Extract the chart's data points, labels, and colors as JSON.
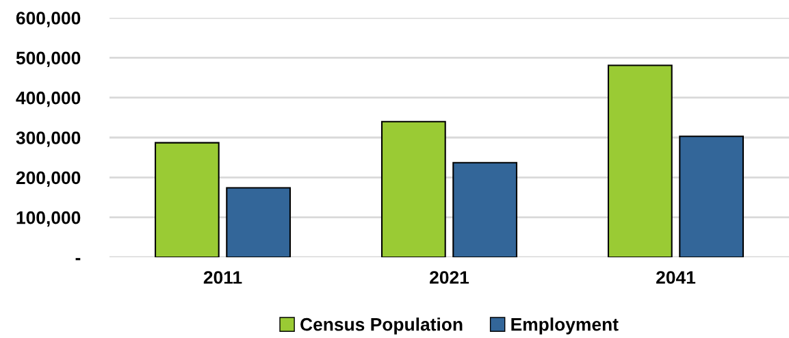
{
  "chart_data": {
    "type": "bar",
    "categories": [
      "2011",
      "2021",
      "2041"
    ],
    "series": [
      {
        "name": "Census Population",
        "color": "#9acb34",
        "values": [
          287000,
          340000,
          481000
        ]
      },
      {
        "name": "Employment",
        "color": "#336699",
        "values": [
          174000,
          237000,
          303000
        ]
      }
    ],
    "ylim": [
      0,
      600000
    ],
    "yticks": [
      {
        "value": 0,
        "label": "-"
      },
      {
        "value": 100000,
        "label": "100,000"
      },
      {
        "value": 200000,
        "label": "200,000"
      },
      {
        "value": 300000,
        "label": "300,000"
      },
      {
        "value": 400000,
        "label": "400,000"
      },
      {
        "value": 500000,
        "label": "500,000"
      },
      {
        "value": 600000,
        "label": "600,000"
      }
    ],
    "grid": "y",
    "legend": "bottom"
  }
}
